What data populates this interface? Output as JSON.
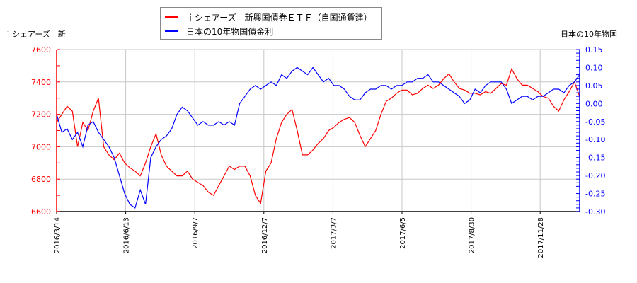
{
  "chart_data": {
    "type": "line",
    "title": "",
    "legend_position": "top-center",
    "grid": true,
    "left_axis": {
      "label": "ｉシェアーズ　新",
      "color": "#ff0000",
      "range": [
        6600,
        7600
      ],
      "ticks": [
        "7600",
        "7400",
        "7200",
        "7000",
        "6800",
        "6600"
      ]
    },
    "right_axis": {
      "label": "日本の10年物国",
      "color": "#0000ff",
      "range": [
        -0.3,
        0.15
      ],
      "ticks": [
        "0.15",
        "0.10",
        "0.05",
        "0.00",
        "-0.05",
        "-0.10",
        "-0.15",
        "-0.20",
        "-0.25",
        "-0.30"
      ]
    },
    "x_ticks": [
      "2016/3/14",
      "2016/6/13",
      "2016/9/7",
      "2016/12/7",
      "2017/3/7",
      "2017/6/5",
      "2017/8/30",
      "2017/11/28"
    ],
    "series": [
      {
        "name": "ｉシェアーズ　新興国債券ＥＴＦ（自国通貨建）",
        "axis": "left",
        "color": "#ff0000",
        "x_fraction": [
          0.0,
          0.01,
          0.02,
          0.03,
          0.04,
          0.05,
          0.06,
          0.07,
          0.08,
          0.09,
          0.1,
          0.11,
          0.12,
          0.13,
          0.14,
          0.15,
          0.16,
          0.17,
          0.18,
          0.19,
          0.2,
          0.21,
          0.22,
          0.23,
          0.24,
          0.25,
          0.26,
          0.27,
          0.28,
          0.29,
          0.3,
          0.31,
          0.32,
          0.33,
          0.34,
          0.35,
          0.36,
          0.37,
          0.38,
          0.39,
          0.4,
          0.41,
          0.42,
          0.43,
          0.44,
          0.45,
          0.46,
          0.47,
          0.48,
          0.49,
          0.5,
          0.51,
          0.52,
          0.53,
          0.54,
          0.55,
          0.56,
          0.57,
          0.58,
          0.59,
          0.6,
          0.61,
          0.62,
          0.63,
          0.64,
          0.65,
          0.66,
          0.67,
          0.68,
          0.69,
          0.7,
          0.71,
          0.72,
          0.73,
          0.74,
          0.75,
          0.76,
          0.77,
          0.78,
          0.79,
          0.8,
          0.81,
          0.82,
          0.83,
          0.84,
          0.85,
          0.86,
          0.87,
          0.88,
          0.89,
          0.9,
          0.91,
          0.92,
          0.93,
          0.94,
          0.95,
          0.96,
          0.97,
          0.98,
          0.99,
          1.0
        ],
        "values": [
          7150,
          7200,
          7250,
          7220,
          7000,
          7150,
          7100,
          7220,
          7300,
          7000,
          6950,
          6920,
          6960,
          6900,
          6870,
          6850,
          6820,
          6900,
          7000,
          7080,
          6950,
          6880,
          6850,
          6820,
          6820,
          6850,
          6800,
          6780,
          6760,
          6720,
          6700,
          6760,
          6820,
          6880,
          6860,
          6880,
          6880,
          6820,
          6700,
          6650,
          6850,
          6900,
          7050,
          7150,
          7200,
          7230,
          7100,
          6950,
          6950,
          6980,
          7020,
          7050,
          7100,
          7120,
          7150,
          7170,
          7180,
          7150,
          7070,
          7000,
          7050,
          7100,
          7200,
          7280,
          7300,
          7330,
          7350,
          7350,
          7320,
          7330,
          7360,
          7380,
          7360,
          7380,
          7420,
          7450,
          7400,
          7360,
          7350,
          7330,
          7330,
          7320,
          7340,
          7330,
          7360,
          7390,
          7380,
          7480,
          7420,
          7380,
          7380,
          7360,
          7340,
          7310,
          7300,
          7250,
          7220,
          7290,
          7340,
          7400,
          7310
        ]
      },
      {
        "name": "日本の10年物国債金利",
        "axis": "right",
        "color": "#0000ff",
        "x_fraction": [
          0.0,
          0.01,
          0.02,
          0.03,
          0.04,
          0.05,
          0.06,
          0.07,
          0.08,
          0.09,
          0.1,
          0.11,
          0.12,
          0.13,
          0.14,
          0.15,
          0.16,
          0.17,
          0.18,
          0.19,
          0.2,
          0.21,
          0.22,
          0.23,
          0.24,
          0.25,
          0.26,
          0.27,
          0.28,
          0.29,
          0.3,
          0.31,
          0.32,
          0.33,
          0.34,
          0.35,
          0.36,
          0.37,
          0.38,
          0.39,
          0.4,
          0.41,
          0.42,
          0.43,
          0.44,
          0.45,
          0.46,
          0.47,
          0.48,
          0.49,
          0.5,
          0.51,
          0.52,
          0.53,
          0.54,
          0.55,
          0.56,
          0.57,
          0.58,
          0.59,
          0.6,
          0.61,
          0.62,
          0.63,
          0.64,
          0.65,
          0.66,
          0.67,
          0.68,
          0.69,
          0.7,
          0.71,
          0.72,
          0.73,
          0.74,
          0.75,
          0.76,
          0.77,
          0.78,
          0.79,
          0.8,
          0.81,
          0.82,
          0.83,
          0.84,
          0.85,
          0.86,
          0.87,
          0.88,
          0.89,
          0.9,
          0.91,
          0.92,
          0.93,
          0.94,
          0.95,
          0.96,
          0.97,
          0.98,
          0.99,
          1.0
        ],
        "values": [
          -0.03,
          -0.08,
          -0.07,
          -0.1,
          -0.08,
          -0.12,
          -0.06,
          -0.05,
          -0.08,
          -0.1,
          -0.12,
          -0.15,
          -0.2,
          -0.25,
          -0.28,
          -0.29,
          -0.24,
          -0.28,
          -0.15,
          -0.12,
          -0.1,
          -0.09,
          -0.07,
          -0.03,
          -0.01,
          -0.02,
          -0.04,
          -0.06,
          -0.05,
          -0.06,
          -0.06,
          -0.05,
          -0.06,
          -0.05,
          -0.06,
          0.0,
          0.02,
          0.04,
          0.05,
          0.04,
          0.05,
          0.06,
          0.05,
          0.08,
          0.07,
          0.09,
          0.1,
          0.09,
          0.08,
          0.1,
          0.08,
          0.06,
          0.07,
          0.05,
          0.05,
          0.04,
          0.02,
          0.01,
          0.01,
          0.03,
          0.04,
          0.04,
          0.05,
          0.05,
          0.04,
          0.05,
          0.05,
          0.06,
          0.06,
          0.07,
          0.07,
          0.08,
          0.06,
          0.06,
          0.05,
          0.04,
          0.03,
          0.02,
          0.0,
          0.01,
          0.04,
          0.03,
          0.05,
          0.06,
          0.06,
          0.06,
          0.04,
          0.0,
          0.01,
          0.02,
          0.02,
          0.01,
          0.02,
          0.02,
          0.03,
          0.04,
          0.04,
          0.03,
          0.05,
          0.06,
          0.08
        ]
      }
    ]
  },
  "legend": {
    "items": [
      {
        "label": "ｉシェアーズ　新興国債券ＥＴＦ（自国通貨建）",
        "color": "#ff0000"
      },
      {
        "label": "日本の10年物国債金利",
        "color": "#0000ff"
      }
    ]
  },
  "axes": {
    "left_title": "ｉシェアーズ　新",
    "right_title": "日本の10年物国"
  }
}
